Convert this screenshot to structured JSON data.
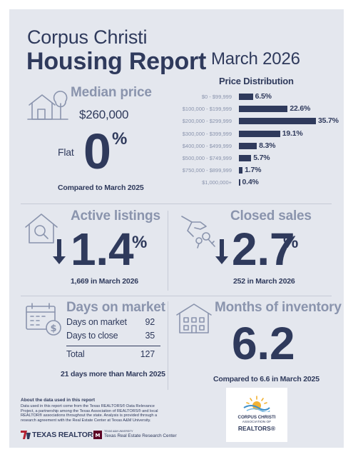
{
  "header": {
    "city": "Corpus Christi",
    "title": "Housing Report",
    "month": "March 2026"
  },
  "median_price": {
    "heading": "Median price",
    "value": "$260,000",
    "direction": "Flat",
    "change_number": "0",
    "percent_sign": "%",
    "comparison": "Compared to March 2025",
    "icon": "house-tree-icon"
  },
  "price_distribution": {
    "heading": "Price Distribution",
    "chart_data": {
      "type": "bar",
      "categories": [
        "$0 - $99,999",
        "$100,000 - $199,999",
        "$200,000 - $299,999",
        "$300,000 - $399,999",
        "$400,000 - $499,999",
        "$500,000 - $749,999",
        "$750,000 - $899,999",
        "$1,000,000+"
      ],
      "values": [
        6.5,
        22.6,
        35.7,
        19.1,
        8.3,
        5.7,
        1.7,
        0.4
      ],
      "value_labels": [
        "6.5%",
        "22.6%",
        "35.7%",
        "19.1%",
        "8.3%",
        "5.7%",
        "1.7%",
        "0.4%"
      ],
      "title": "Price Distribution",
      "orientation": "horizontal",
      "xlabel": "",
      "ylabel": ""
    }
  },
  "active_listings": {
    "heading": "Active listings",
    "direction": "down",
    "change_number": "1.4",
    "percent_sign": "%",
    "detail": "1,669 in March 2026",
    "icon": "house-magnifier-icon"
  },
  "closed_sales": {
    "heading": "Closed sales",
    "direction": "down",
    "change_number": "2.7",
    "percent_sign": "%",
    "detail": "252 in March 2026",
    "icon": "hand-keys-icon"
  },
  "days_on_market": {
    "heading": "Days on market",
    "rows": [
      {
        "label": "Days on market",
        "value": "92"
      },
      {
        "label": "Days to close",
        "value": "35"
      }
    ],
    "total": {
      "label": "Total",
      "value": "127"
    },
    "comparison": "21 days more than March 2025",
    "icon": "calendar-dollar-icon"
  },
  "months_of_inventory": {
    "heading": "Months of inventory",
    "value": "6.2",
    "comparison": "Compared to 6.6 in March 2025",
    "icon": "house-building-icon"
  },
  "footer": {
    "about_heading": "About the data used in this report",
    "about_text": "Data used in this report come from the Texas REALTORS® Data Relevance Project, a partnership among the Texas Association of REALTORS® and local REALTOR® associations throughout the state. Analysis is provided through a research agreement with the Real Estate Center at Texas A&M University.",
    "logo_texas_realtors": "TEXAS REALTORS",
    "logo_research_small": "TEXAS A&M UNIVERSITY",
    "logo_research": "Texas Real Estate Research Center",
    "logo_local_line1": "CORPUS CHRISTI",
    "logo_local_line2": "ASSOCIATION OF",
    "logo_local_line3": "REALTORS®"
  },
  "colors": {
    "navy": "#2f3a5c",
    "muted": "#8a94ad",
    "background": "#e4e7ee",
    "texas_red": "#b22234"
  }
}
